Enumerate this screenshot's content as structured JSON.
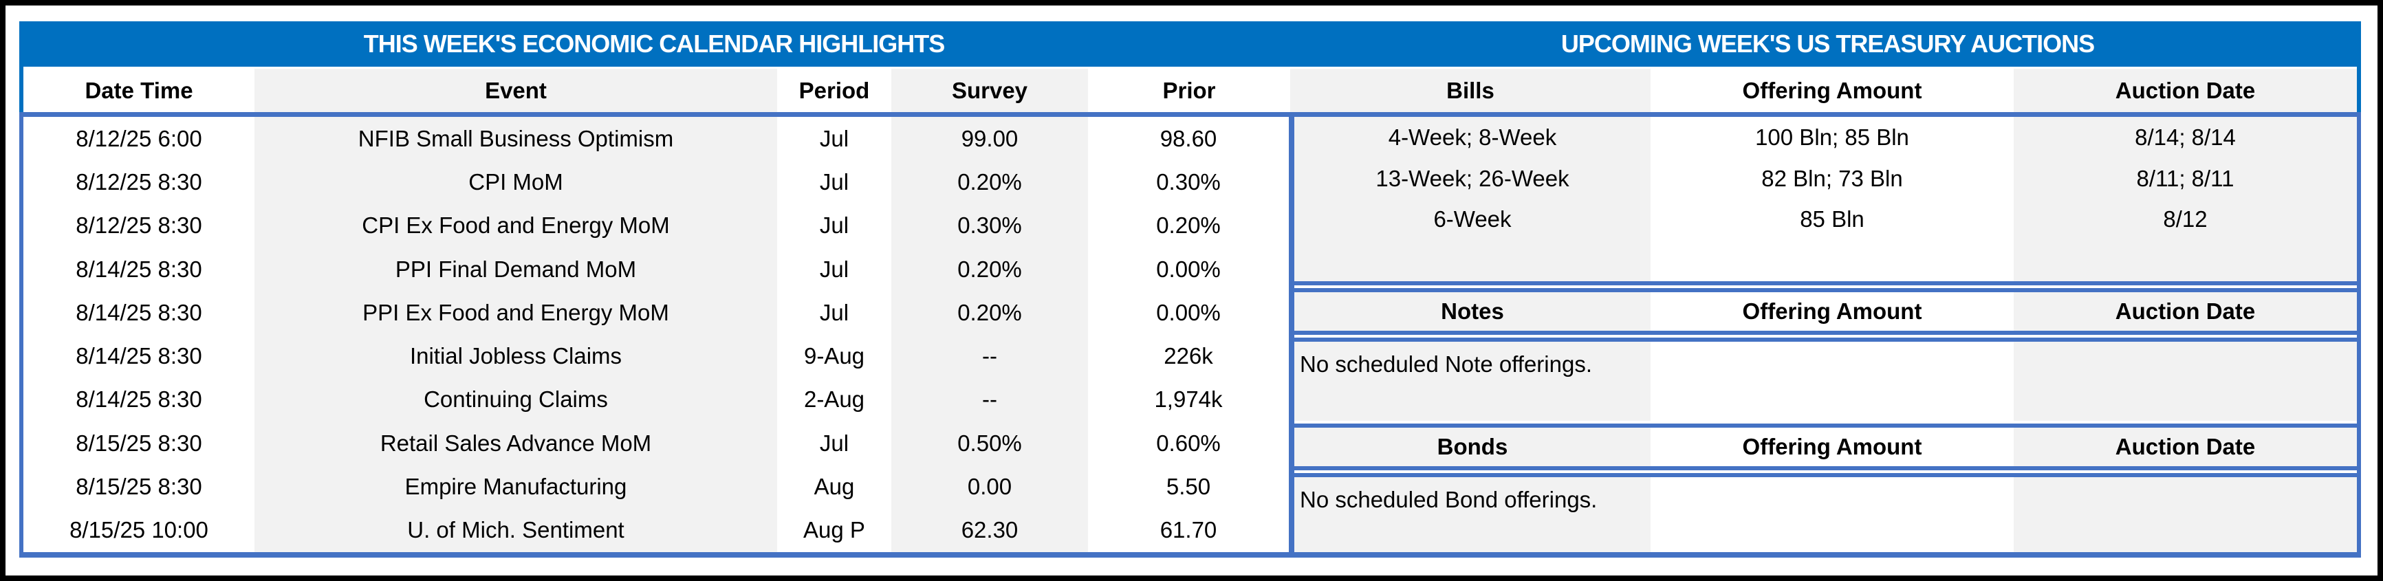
{
  "colors": {
    "band": "#0070C0",
    "border": "#4472C4",
    "gray": "#F2F2F2",
    "white": "#FFFFFF",
    "text": "#000000",
    "title_text": "#FFFFFF",
    "frame": "#000000"
  },
  "titles": {
    "calendar": "THIS WEEK'S ECONOMIC CALENDAR HIGHLIGHTS",
    "auctions": "UPCOMING WEEK'S US TREASURY AUCTIONS"
  },
  "calendar": {
    "columns": [
      "Date Time",
      "Event",
      "Period",
      "Survey",
      "Prior"
    ],
    "rows": [
      {
        "datetime": "8/12/25 6:00",
        "event": "NFIB Small Business Optimism",
        "period": "Jul",
        "survey": "99.00",
        "prior": "98.60"
      },
      {
        "datetime": "8/12/25 8:30",
        "event": "CPI MoM",
        "period": "Jul",
        "survey": "0.20%",
        "prior": "0.30%"
      },
      {
        "datetime": "8/12/25 8:30",
        "event": "CPI Ex Food and Energy MoM",
        "period": "Jul",
        "survey": "0.30%",
        "prior": "0.20%"
      },
      {
        "datetime": "8/14/25 8:30",
        "event": "PPI Final Demand MoM",
        "period": "Jul",
        "survey": "0.20%",
        "prior": "0.00%"
      },
      {
        "datetime": "8/14/25 8:30",
        "event": "PPI Ex Food and Energy MoM",
        "period": "Jul",
        "survey": "0.20%",
        "prior": "0.00%"
      },
      {
        "datetime": "8/14/25 8:30",
        "event": "Initial Jobless Claims",
        "period": "9-Aug",
        "survey": "--",
        "prior": "226k"
      },
      {
        "datetime": "8/14/25 8:30",
        "event": "Continuing Claims",
        "period": "2-Aug",
        "survey": "--",
        "prior": "1,974k"
      },
      {
        "datetime": "8/15/25 8:30",
        "event": "Retail Sales Advance MoM",
        "period": "Jul",
        "survey": "0.50%",
        "prior": "0.60%"
      },
      {
        "datetime": "8/15/25 8:30",
        "event": "Empire Manufacturing",
        "period": "Aug",
        "survey": "0.00",
        "prior": "5.50"
      },
      {
        "datetime": "8/15/25 10:00",
        "event": "U. of Mich. Sentiment",
        "period": "Aug P",
        "survey": "62.30",
        "prior": "61.70"
      }
    ]
  },
  "auctions": {
    "bills": {
      "columns": [
        "Bills",
        "Offering Amount",
        "Auction Date"
      ],
      "rows": [
        {
          "security": "4-Week; 8-Week",
          "amount": "100 Bln; 85 Bln",
          "date": "8/14; 8/14"
        },
        {
          "security": "13-Week; 26-Week",
          "amount": "82 Bln; 73 Bln",
          "date": "8/11; 8/11"
        },
        {
          "security": "6-Week",
          "amount": "85 Bln",
          "date": "8/12"
        }
      ]
    },
    "notes": {
      "columns": [
        "Notes",
        "Offering Amount",
        "Auction Date"
      ],
      "message": "No scheduled Note offerings."
    },
    "bonds": {
      "columns": [
        "Bonds",
        "Offering Amount",
        "Auction Date"
      ],
      "message": "No scheduled Bond offerings."
    }
  }
}
